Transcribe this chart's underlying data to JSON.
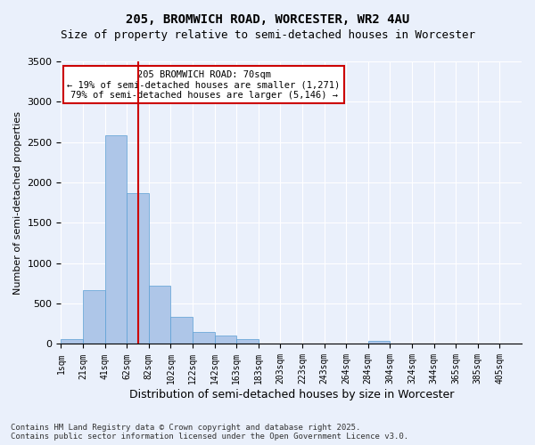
{
  "title1": "205, BROMWICH ROAD, WORCESTER, WR2 4AU",
  "title2": "Size of property relative to semi-detached houses in Worcester",
  "xlabel": "Distribution of semi-detached houses by size in Worcester",
  "ylabel": "Number of semi-detached properties",
  "footnote": "Contains HM Land Registry data © Crown copyright and database right 2025.\nContains public sector information licensed under the Open Government Licence v3.0.",
  "bin_labels": [
    "1sqm",
    "21sqm",
    "41sqm",
    "62sqm",
    "82sqm",
    "102sqm",
    "122sqm",
    "142sqm",
    "163sqm",
    "183sqm",
    "203sqm",
    "223sqm",
    "243sqm",
    "264sqm",
    "284sqm",
    "304sqm",
    "324sqm",
    "344sqm",
    "365sqm",
    "385sqm",
    "405sqm"
  ],
  "bar_values": [
    60,
    670,
    2590,
    1870,
    720,
    340,
    150,
    100,
    55,
    5,
    0,
    0,
    0,
    0,
    35,
    0,
    0,
    0,
    0,
    0,
    0
  ],
  "bar_color": "#aec6e8",
  "bar_edge_color": "#5a9fd4",
  "vline_x_index": 3.5,
  "vline_color": "#cc0000",
  "annotation_title": "205 BROMWICH ROAD: 70sqm",
  "annotation_line1": "← 19% of semi-detached houses are smaller (1,271)",
  "annotation_line2": "79% of semi-detached houses are larger (5,146) →",
  "annotation_box_color": "#ffffff",
  "annotation_box_edge": "#cc0000",
  "ylim": [
    0,
    3500
  ],
  "yticks": [
    0,
    500,
    1000,
    1500,
    2000,
    2500,
    3000,
    3500
  ],
  "background_color": "#eaf0fb",
  "grid_color": "#ffffff"
}
